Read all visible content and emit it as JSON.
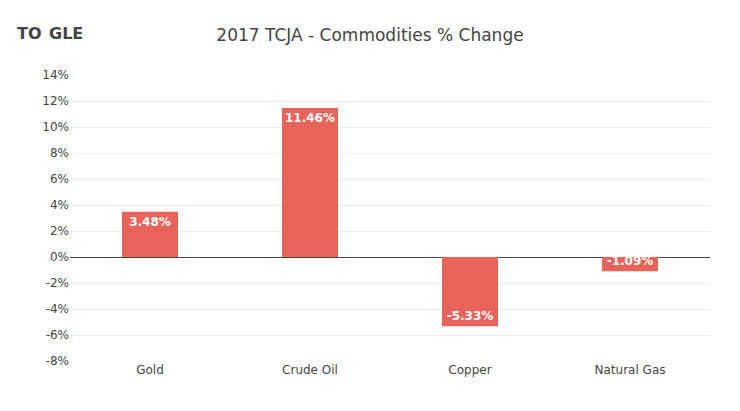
{
  "chart_data": {
    "type": "bar",
    "title": "2017 TCJA - Commodities % Change",
    "categories": [
      "Gold",
      "Crude Oil",
      "Copper",
      "Natural Gas"
    ],
    "values": [
      3.48,
      11.46,
      -5.33,
      -1.09
    ],
    "value_labels": [
      "3.48%",
      "11.46%",
      "-5.33%",
      "-1.09%"
    ],
    "data_labels": true,
    "color": "#E8635A",
    "ylim": [
      -8,
      14
    ],
    "yticks": [
      {
        "value": -8,
        "label": "-8%"
      },
      {
        "value": -6,
        "label": "-6%"
      },
      {
        "value": -4,
        "label": "-4%"
      },
      {
        "value": -2,
        "label": "-2%"
      },
      {
        "value": 0,
        "label": "0%"
      },
      {
        "value": 2,
        "label": "2%"
      },
      {
        "value": 4,
        "label": "4%"
      },
      {
        "value": 6,
        "label": "6%"
      },
      {
        "value": 8,
        "label": "8%"
      },
      {
        "value": 10,
        "label": "10%"
      },
      {
        "value": 12,
        "label": "12%"
      },
      {
        "value": 14,
        "label": "14%"
      }
    ],
    "grid": true,
    "annotations": [
      "TO",
      "GLE"
    ]
  }
}
